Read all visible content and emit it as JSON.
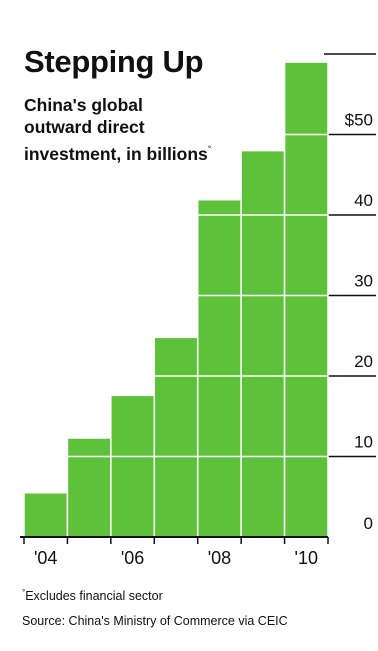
{
  "chart_data": {
    "type": "bar",
    "title": "Stepping Up",
    "subtitle": "China's global outward direct investment, in billions",
    "footnote_marker": "°",
    "categories": [
      "2004",
      "2005",
      "2006",
      "2007",
      "2008",
      "2009",
      "2010"
    ],
    "values": [
      5.5,
      12.3,
      17.6,
      24.8,
      41.9,
      48.0,
      59.0
    ],
    "x_tick_labels": [
      {
        "index": 0,
        "label": "'04"
      },
      {
        "index": 2,
        "label": "'06"
      },
      {
        "index": 4,
        "label": "'08"
      },
      {
        "index": 6,
        "label": "'10"
      }
    ],
    "y_ticks": [
      {
        "value": 0,
        "label": "0"
      },
      {
        "value": 10,
        "label": "10"
      },
      {
        "value": 20,
        "label": "20"
      },
      {
        "value": 30,
        "label": "30"
      },
      {
        "value": 40,
        "label": "40"
      },
      {
        "value": 50,
        "label": "$50"
      }
    ],
    "ylim": [
      0,
      60
    ],
    "y_axis_side": "right",
    "grid": true,
    "bar_color": "#5dc23a",
    "bar_edge_color": "#ffffff",
    "axis_color": "#111111",
    "gridline_color": "#ffffff",
    "footnote": "Excludes financial sector",
    "source": "Source: China's Ministry of Commerce via CEIC"
  }
}
